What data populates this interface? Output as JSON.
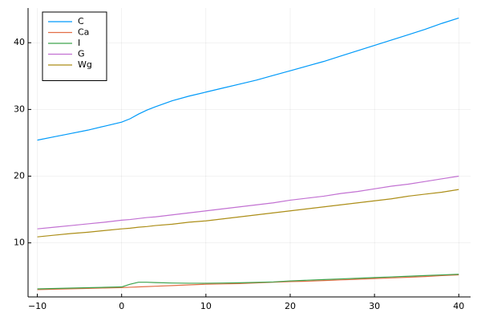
{
  "chart_data": {
    "type": "line",
    "x": [
      -10,
      -8,
      -6,
      -4,
      -2,
      0,
      1,
      2,
      3,
      4,
      6,
      8,
      10,
      12,
      14,
      16,
      18,
      20,
      22,
      24,
      26,
      28,
      30,
      32,
      34,
      36,
      38,
      40
    ],
    "series": [
      {
        "name": "C",
        "color": "#009af9",
        "values": [
          25.4,
          25.9,
          26.4,
          26.9,
          27.5,
          28.1,
          28.6,
          29.3,
          29.9,
          30.4,
          31.3,
          32.0,
          32.6,
          33.2,
          33.8,
          34.4,
          35.1,
          35.8,
          36.5,
          37.2,
          38.0,
          38.8,
          39.6,
          40.4,
          41.2,
          42.0,
          42.9,
          43.7
        ]
      },
      {
        "name": "Ca",
        "color": "#e26f46",
        "values": [
          3.0,
          3.06,
          3.12,
          3.18,
          3.24,
          3.3,
          3.35,
          3.4,
          3.45,
          3.5,
          3.6,
          3.7,
          3.8,
          3.85,
          3.9,
          4.0,
          4.1,
          4.2,
          4.25,
          4.35,
          4.45,
          4.55,
          4.65,
          4.75,
          4.85,
          4.95,
          5.1,
          5.2
        ]
      },
      {
        "name": "I",
        "color": "#3da44d",
        "values": [
          3.1,
          3.16,
          3.22,
          3.28,
          3.34,
          3.4,
          3.8,
          4.1,
          4.1,
          4.05,
          3.98,
          3.95,
          3.95,
          3.98,
          4.02,
          4.08,
          4.15,
          4.3,
          4.4,
          4.5,
          4.6,
          4.7,
          4.8,
          4.9,
          5.0,
          5.1,
          5.2,
          5.3
        ]
      },
      {
        "name": "G",
        "color": "#c271d2",
        "values": [
          12.1,
          12.35,
          12.6,
          12.85,
          13.1,
          13.4,
          13.5,
          13.65,
          13.8,
          13.9,
          14.2,
          14.5,
          14.8,
          15.1,
          15.4,
          15.7,
          16.0,
          16.4,
          16.7,
          17.0,
          17.4,
          17.7,
          18.1,
          18.5,
          18.8,
          19.2,
          19.6,
          20.0
        ]
      },
      {
        "name": "Wg",
        "color": "#ac8e18",
        "values": [
          10.9,
          11.15,
          11.4,
          11.6,
          11.85,
          12.1,
          12.2,
          12.35,
          12.45,
          12.6,
          12.8,
          13.1,
          13.3,
          13.6,
          13.9,
          14.2,
          14.5,
          14.8,
          15.1,
          15.4,
          15.7,
          16.0,
          16.3,
          16.6,
          17.0,
          17.3,
          17.6,
          18.0
        ]
      }
    ],
    "xlim": [
      -11.1,
      41.4
    ],
    "xticks": [
      {
        "value": -10,
        "label": "−10"
      },
      0,
      10,
      20,
      30,
      40
    ],
    "ylim": [
      1.9,
      45.2
    ],
    "yticks": [
      10,
      20,
      30,
      40
    ],
    "grid": true,
    "legend": "top-left"
  }
}
